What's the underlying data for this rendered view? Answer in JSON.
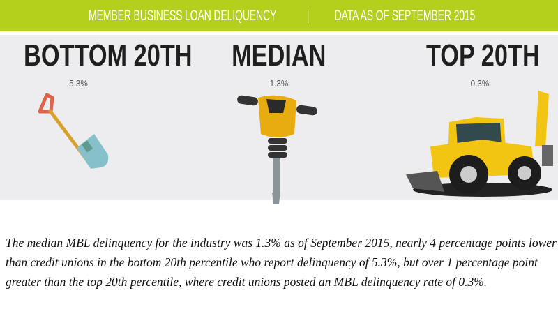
{
  "banner": {
    "title": "MEMBER BUSINESS LOAN DELIQUENCY",
    "separator": "|",
    "date": "DATA AS OF SEPTEMBER 2015",
    "color": "#b4d01c"
  },
  "groups": [
    {
      "label": "BOTTOM 20TH",
      "value": "5.3%",
      "icon": "shovel-icon"
    },
    {
      "label": "MEDIAN",
      "value": "1.3%",
      "icon": "jackhammer-icon"
    },
    {
      "label": "TOP 20TH",
      "value": "0.3%",
      "icon": "backhoe-icon"
    }
  ],
  "paragraph": "The median MBL delinquency for the industry was 1.3% as of September 2015, nearly 4 percentage points lower than credit unions in the bottom 20th percentile who report delinquency of 5.3%, but over 1 percentage point greater than the top 20th percentile, where credit unions posted an MBL delinquency rate of 0.3%."
}
